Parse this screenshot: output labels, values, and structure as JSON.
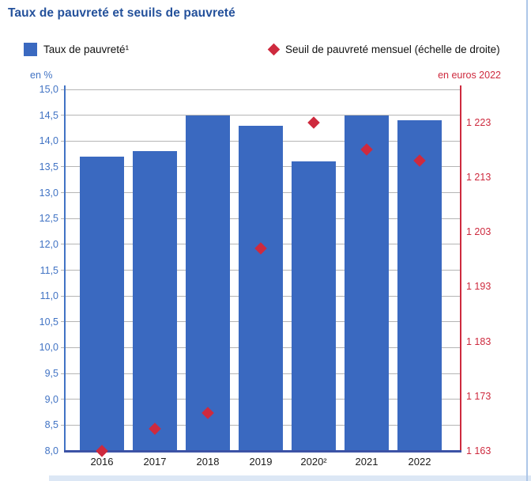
{
  "chart_data": {
    "type": "bar",
    "title": "Taux de pauvreté et seuils de pauvreté",
    "categories": [
      "2016",
      "2017",
      "2018",
      "2019",
      "2020²",
      "2021",
      "2022"
    ],
    "series": [
      {
        "name": "Taux de pauvreté¹",
        "type": "bar",
        "axis": "left",
        "values": [
          13.7,
          13.8,
          14.5,
          14.3,
          13.6,
          14.5,
          14.4
        ]
      },
      {
        "name": "Seuil de pauvreté mensuel (échelle de droite)",
        "type": "scatter",
        "marker": "diamond",
        "axis": "right",
        "values": [
          1163,
          1167,
          1170,
          1200,
          1223,
          1218,
          1216
        ]
      }
    ],
    "left_axis": {
      "label": "en %",
      "min": 8.0,
      "max": 15.0,
      "tick_step": 0.5,
      "tick_format": "fr-decimal-1"
    },
    "right_axis": {
      "label": "en euros 2022",
      "min": 1163,
      "max": 1229,
      "ticks": [
        1163,
        1173,
        1183,
        1193,
        1203,
        1213,
        1223
      ],
      "tick_format": "fr-thousands"
    },
    "grid": true,
    "legend_position": "top",
    "colors": {
      "bar": "#3a69c0",
      "diamond": "#ce2a3e",
      "left_axis": "#4173c4",
      "right_axis": "#ce2a3e",
      "gridline": "#b5b5b5",
      "baseline": "#3c53a6",
      "title": "#24519b",
      "x_labels": "#1a1a1a",
      "page_border": "#adc6e8",
      "footer_strip": "#dce7f5"
    }
  }
}
